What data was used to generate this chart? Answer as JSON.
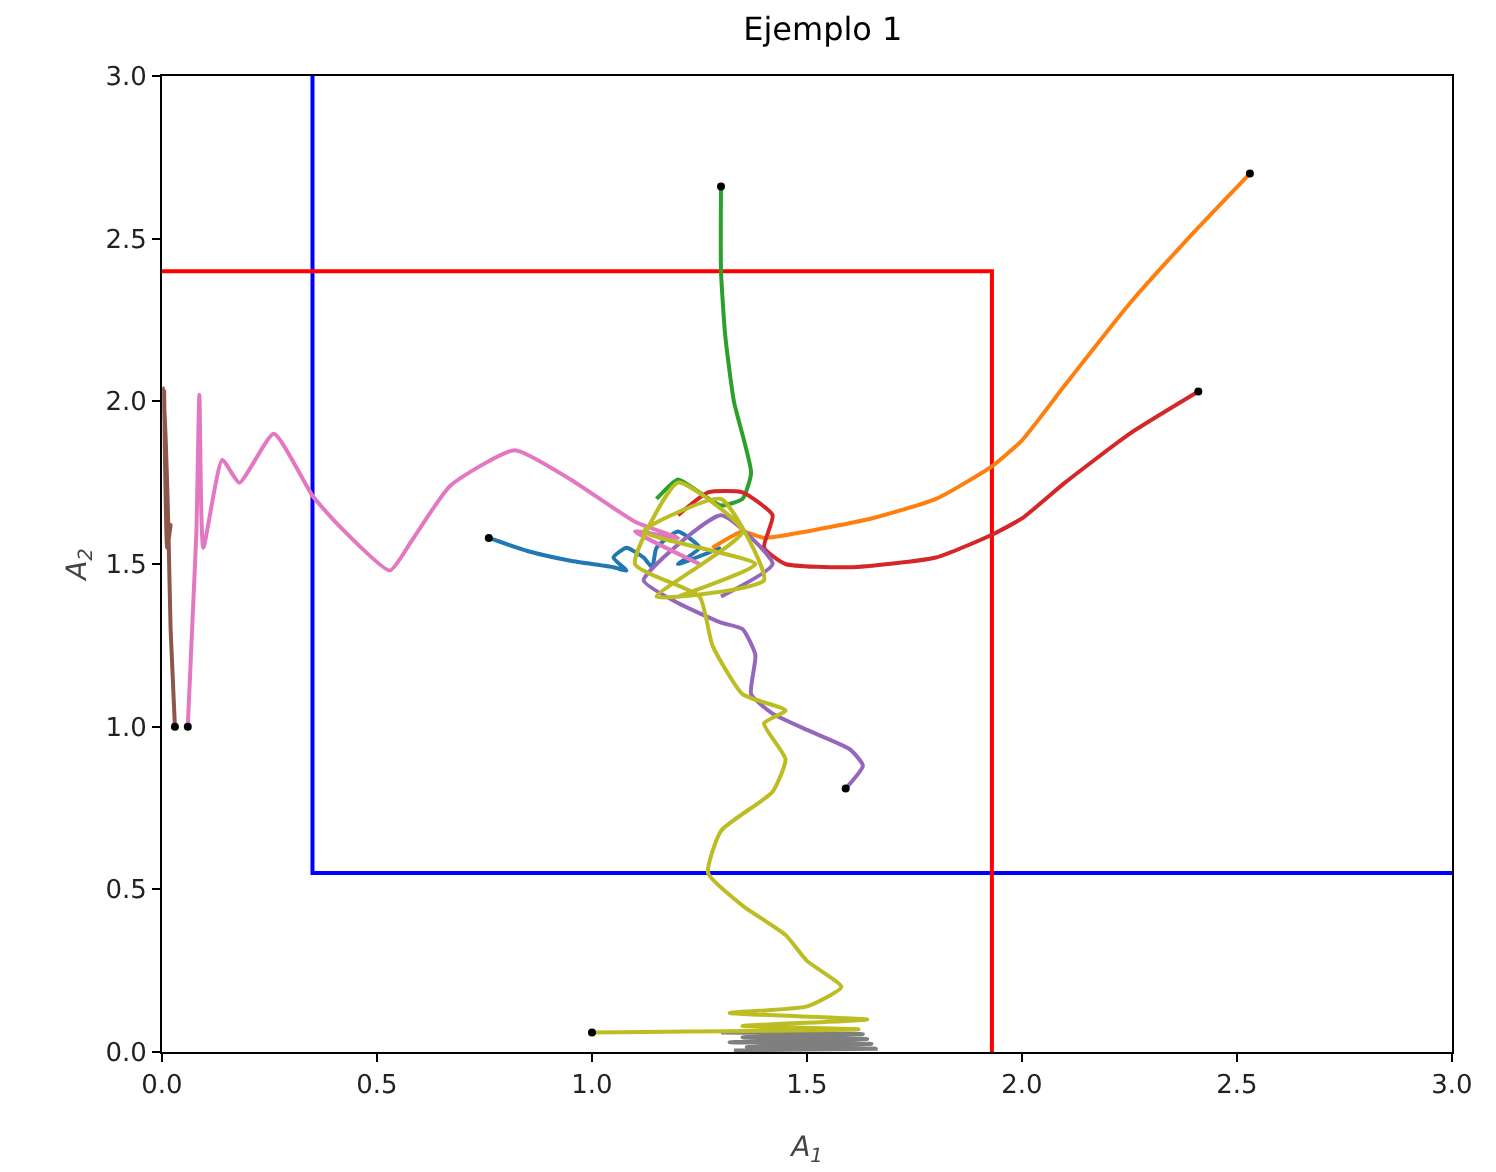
{
  "chart_data": {
    "type": "line",
    "title": "Ejemplo 1",
    "xlabel": "A$_{1}$",
    "ylabel": "A$_{2}$",
    "grid": false,
    "line_style": "solid",
    "xlim": [
      0,
      3
    ],
    "ylim": [
      0,
      3
    ],
    "xticks": [
      {
        "value": 0,
        "label": "0.0"
      },
      {
        "value": 0.5,
        "label": "0.5"
      },
      {
        "value": 1,
        "label": "1.0"
      },
      {
        "value": 1.5,
        "label": "1.5"
      },
      {
        "value": 2,
        "label": "2.0"
      },
      {
        "value": 2.5,
        "label": "2.5"
      },
      {
        "value": 3,
        "label": "3.0"
      }
    ],
    "yticks": [
      {
        "value": 0,
        "label": "0.0"
      },
      {
        "value": 0.5,
        "label": "0.5"
      },
      {
        "value": 1,
        "label": "1.0"
      },
      {
        "value": 1.5,
        "label": "1.5"
      },
      {
        "value": 2,
        "label": "2.0"
      },
      {
        "value": 2.5,
        "label": "2.5"
      },
      {
        "value": 3,
        "label": "3.0"
      }
    ],
    "series": [
      {
        "color": "#0000ff",
        "x": [
          0.35,
          0.35,
          3
        ],
        "values": [
          3,
          0.55,
          0.55
        ]
      },
      {
        "color": "#ff0000",
        "x": [
          0,
          1.93,
          1.93
        ],
        "values": [
          2.4,
          2.4,
          0
        ]
      },
      {
        "color": "#1f77b4",
        "x": [
          0.76,
          0.85,
          0.95,
          1.05,
          1.08,
          1.05,
          1.08,
          1.12,
          1.14,
          1.15,
          1.2,
          1.25,
          1.2,
          1.3
        ],
        "values": [
          1.58,
          1.54,
          1.51,
          1.49,
          1.48,
          1.52,
          1.55,
          1.52,
          1.49,
          1.55,
          1.6,
          1.55,
          1.5,
          1.55
        ]
      },
      {
        "color": "#ff7f0e",
        "x": [
          2.53,
          2.4,
          2.25,
          2.1,
          2.0,
          1.93,
          1.8,
          1.65,
          1.5,
          1.4,
          1.35,
          1.28
        ],
        "values": [
          2.7,
          2.52,
          2.3,
          2.05,
          1.88,
          1.8,
          1.7,
          1.64,
          1.6,
          1.58,
          1.6,
          1.55
        ]
      },
      {
        "color": "#2ca02c",
        "x": [
          1.3,
          1.3,
          1.31,
          1.33,
          1.37,
          1.35,
          1.3,
          1.25,
          1.2,
          1.15
        ],
        "values": [
          2.66,
          2.4,
          2.2,
          2.0,
          1.78,
          1.7,
          1.68,
          1.72,
          1.76,
          1.7
        ]
      },
      {
        "color": "#d62728",
        "x": [
          2.41,
          2.25,
          2.1,
          2.0,
          1.93,
          1.8,
          1.6,
          1.45,
          1.4,
          1.42,
          1.35,
          1.27,
          1.2
        ],
        "values": [
          2.03,
          1.9,
          1.75,
          1.64,
          1.59,
          1.52,
          1.49,
          1.5,
          1.55,
          1.65,
          1.72,
          1.72,
          1.65
        ]
      },
      {
        "color": "#9467bd",
        "x": [
          1.59,
          1.63,
          1.6,
          1.5,
          1.42,
          1.37,
          1.38,
          1.35,
          1.3,
          1.2,
          1.12,
          1.3,
          1.42,
          1.3
        ],
        "values": [
          0.81,
          0.88,
          0.93,
          0.99,
          1.04,
          1.1,
          1.22,
          1.3,
          1.32,
          1.38,
          1.45,
          1.65,
          1.5,
          1.4
        ]
      },
      {
        "color": "#8c564b",
        "x": [
          0.03,
          0.02,
          0.015,
          0.005,
          0.012,
          0.02,
          0.015
        ],
        "values": [
          1.0,
          1.3,
          1.6,
          2.04,
          1.55,
          1.62,
          1.58
        ]
      },
      {
        "color": "#e377c2",
        "x": [
          0.06,
          0.07,
          0.08,
          0.087,
          0.096,
          0.14,
          0.18,
          0.26,
          0.35,
          0.41,
          0.53,
          0.58,
          0.67,
          0.82,
          0.95,
          1.1,
          1.2,
          1.1,
          1.25
        ],
        "values": [
          1.0,
          1.3,
          1.6,
          2.02,
          1.55,
          1.82,
          1.75,
          1.9,
          1.71,
          1.62,
          1.48,
          1.57,
          1.74,
          1.85,
          1.76,
          1.63,
          1.58,
          1.6,
          1.5
        ]
      },
      {
        "color": "#7f7f7f",
        "x": [
          1.3,
          1.63,
          1.35,
          1.64,
          1.32,
          1.65,
          1.36,
          1.66,
          1.33
        ],
        "values": [
          0.06,
          0.055,
          0.045,
          0.04,
          0.03,
          0.025,
          0.015,
          0.01,
          0.005
        ]
      },
      {
        "color": "#bcbd22",
        "x": [
          1.0,
          1.62,
          1.35,
          1.64,
          1.32,
          1.5,
          1.58,
          1.5,
          1.45,
          1.35,
          1.27,
          1.3,
          1.42,
          1.45,
          1.4,
          1.45,
          1.35,
          1.28,
          1.25,
          1.1,
          1.2,
          1.35,
          1.15,
          1.4,
          1.3,
          1.12,
          1.38,
          1.2
        ],
        "values": [
          0.06,
          0.07,
          0.08,
          0.1,
          0.12,
          0.14,
          0.2,
          0.28,
          0.36,
          0.45,
          0.55,
          0.68,
          0.8,
          0.9,
          1.01,
          1.05,
          1.1,
          1.25,
          1.4,
          1.5,
          1.75,
          1.6,
          1.4,
          1.45,
          1.7,
          1.6,
          1.5,
          1.4
        ]
      },
      {
        "type": "scatter",
        "color": "#000000",
        "x": [
          0.76,
          2.53,
          1.3,
          2.41,
          1.59,
          0.03,
          0.06,
          1.0
        ],
        "values": [
          1.58,
          2.7,
          2.66,
          2.03,
          0.81,
          1.0,
          1.0,
          0.06
        ]
      }
    ]
  }
}
